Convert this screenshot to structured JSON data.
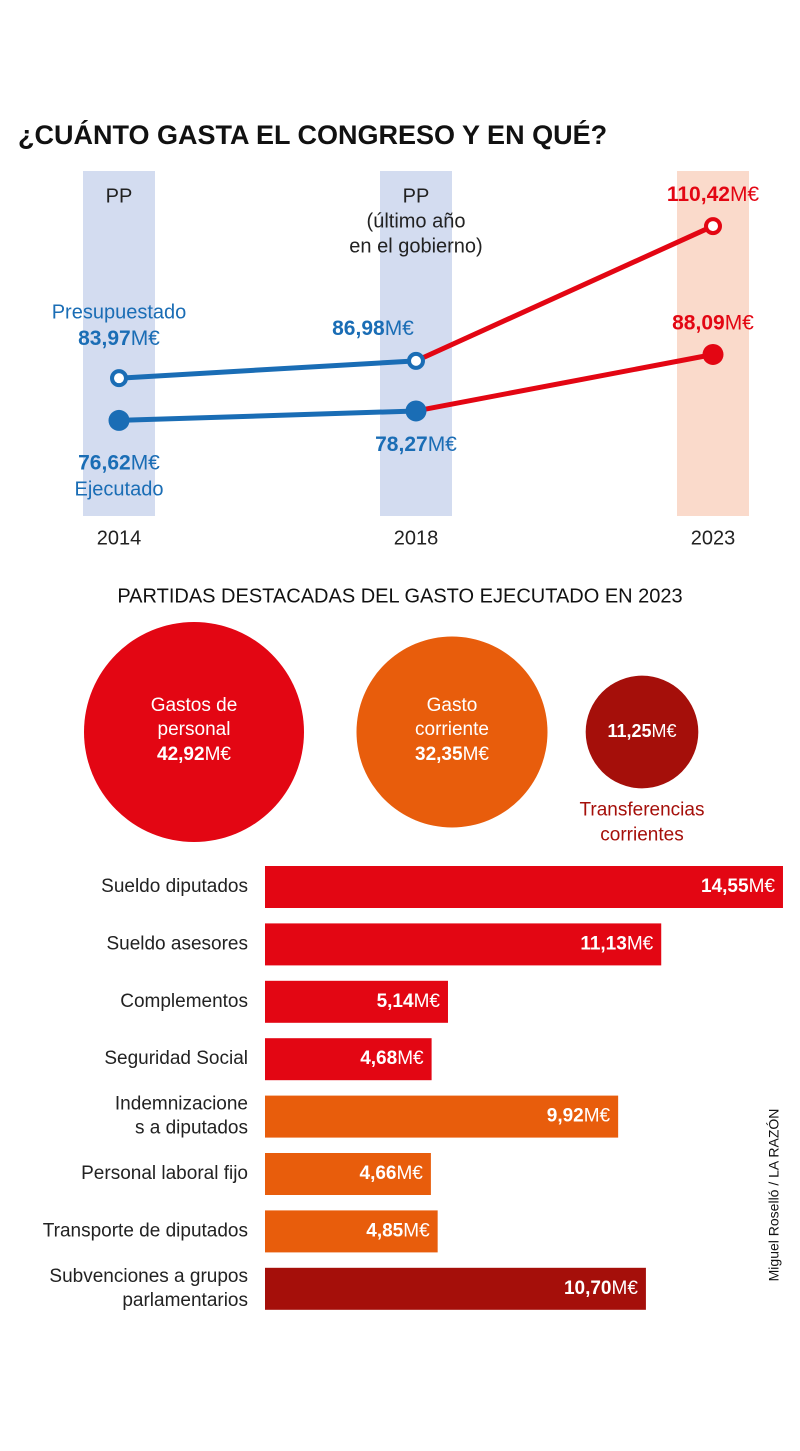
{
  "chart_data": [
    {
      "type": "line",
      "title": "¿CUÁNTO GASTA EL CONGRESO Y EN QUÉ?",
      "unit": "M€",
      "categories": [
        "2014",
        "2018",
        "2023"
      ],
      "ylim": [
        60,
        120
      ],
      "highlight_category": "2023",
      "highlight_color": "#e30613",
      "bands": [
        {
          "category": "2014",
          "color": "#d3dcf0",
          "label": [
            "PP"
          ]
        },
        {
          "category": "2018",
          "color": "#d3dcf0",
          "label": [
            "PP",
            "(último año",
            "en el gobierno)"
          ]
        },
        {
          "category": "2023",
          "color": "#fadacb"
        }
      ],
      "series": [
        {
          "name": "Presupuestado",
          "color": "#1a6db5",
          "marker": "open",
          "values": [
            83.97,
            86.98,
            110.42
          ],
          "value_labels": [
            "83,97",
            "86,98",
            "110,42"
          ]
        },
        {
          "name": "Ejecutado",
          "color": "#1a6db5",
          "marker": "filled",
          "values": [
            76.62,
            78.27,
            88.09
          ],
          "value_labels": [
            "76,62",
            "78,27",
            "88,09"
          ]
        }
      ]
    },
    {
      "type": "bubble",
      "title": "PARTIDAS DESTACADAS DEL GASTO EJECUTADO EN 2023",
      "unit": "M€",
      "categories": [
        [
          "Gastos de",
          "personal"
        ],
        [
          "Gasto",
          "corriente"
        ],
        [
          "Transferencias",
          "corrientes"
        ]
      ],
      "values": [
        42.92,
        32.35,
        11.25
      ],
      "value_labels": [
        "42,92",
        "32,35",
        "11,25"
      ],
      "colors": [
        "#e30613",
        "#e85d0c",
        "#a50f0a"
      ]
    },
    {
      "type": "hbar",
      "unit": "M€",
      "xlim": [
        0,
        15
      ],
      "categories": [
        [
          "Sueldo diputados"
        ],
        [
          "Sueldo asesores"
        ],
        [
          "Complementos"
        ],
        [
          "Seguridad Social"
        ],
        [
          "Indemnizacione",
          "s a diputados"
        ],
        [
          "Personal laboral fijo"
        ],
        [
          "Transporte de diputados"
        ],
        [
          "Subvenciones a grupos",
          "parlamentarios"
        ]
      ],
      "values": [
        14.55,
        11.13,
        5.14,
        4.68,
        9.92,
        4.66,
        4.85,
        10.7
      ],
      "value_labels": [
        "14,55",
        "11,13",
        "5,14",
        "4,68",
        "9,92",
        "4,66",
        "4,85",
        "10,70"
      ],
      "colors": [
        "#e30613",
        "#e30613",
        "#e30613",
        "#e30613",
        "#e85d0c",
        "#e85d0c",
        "#e85d0c",
        "#a50f0a"
      ]
    }
  ],
  "credit": "Miguel Roselló / LA RAZÓN"
}
